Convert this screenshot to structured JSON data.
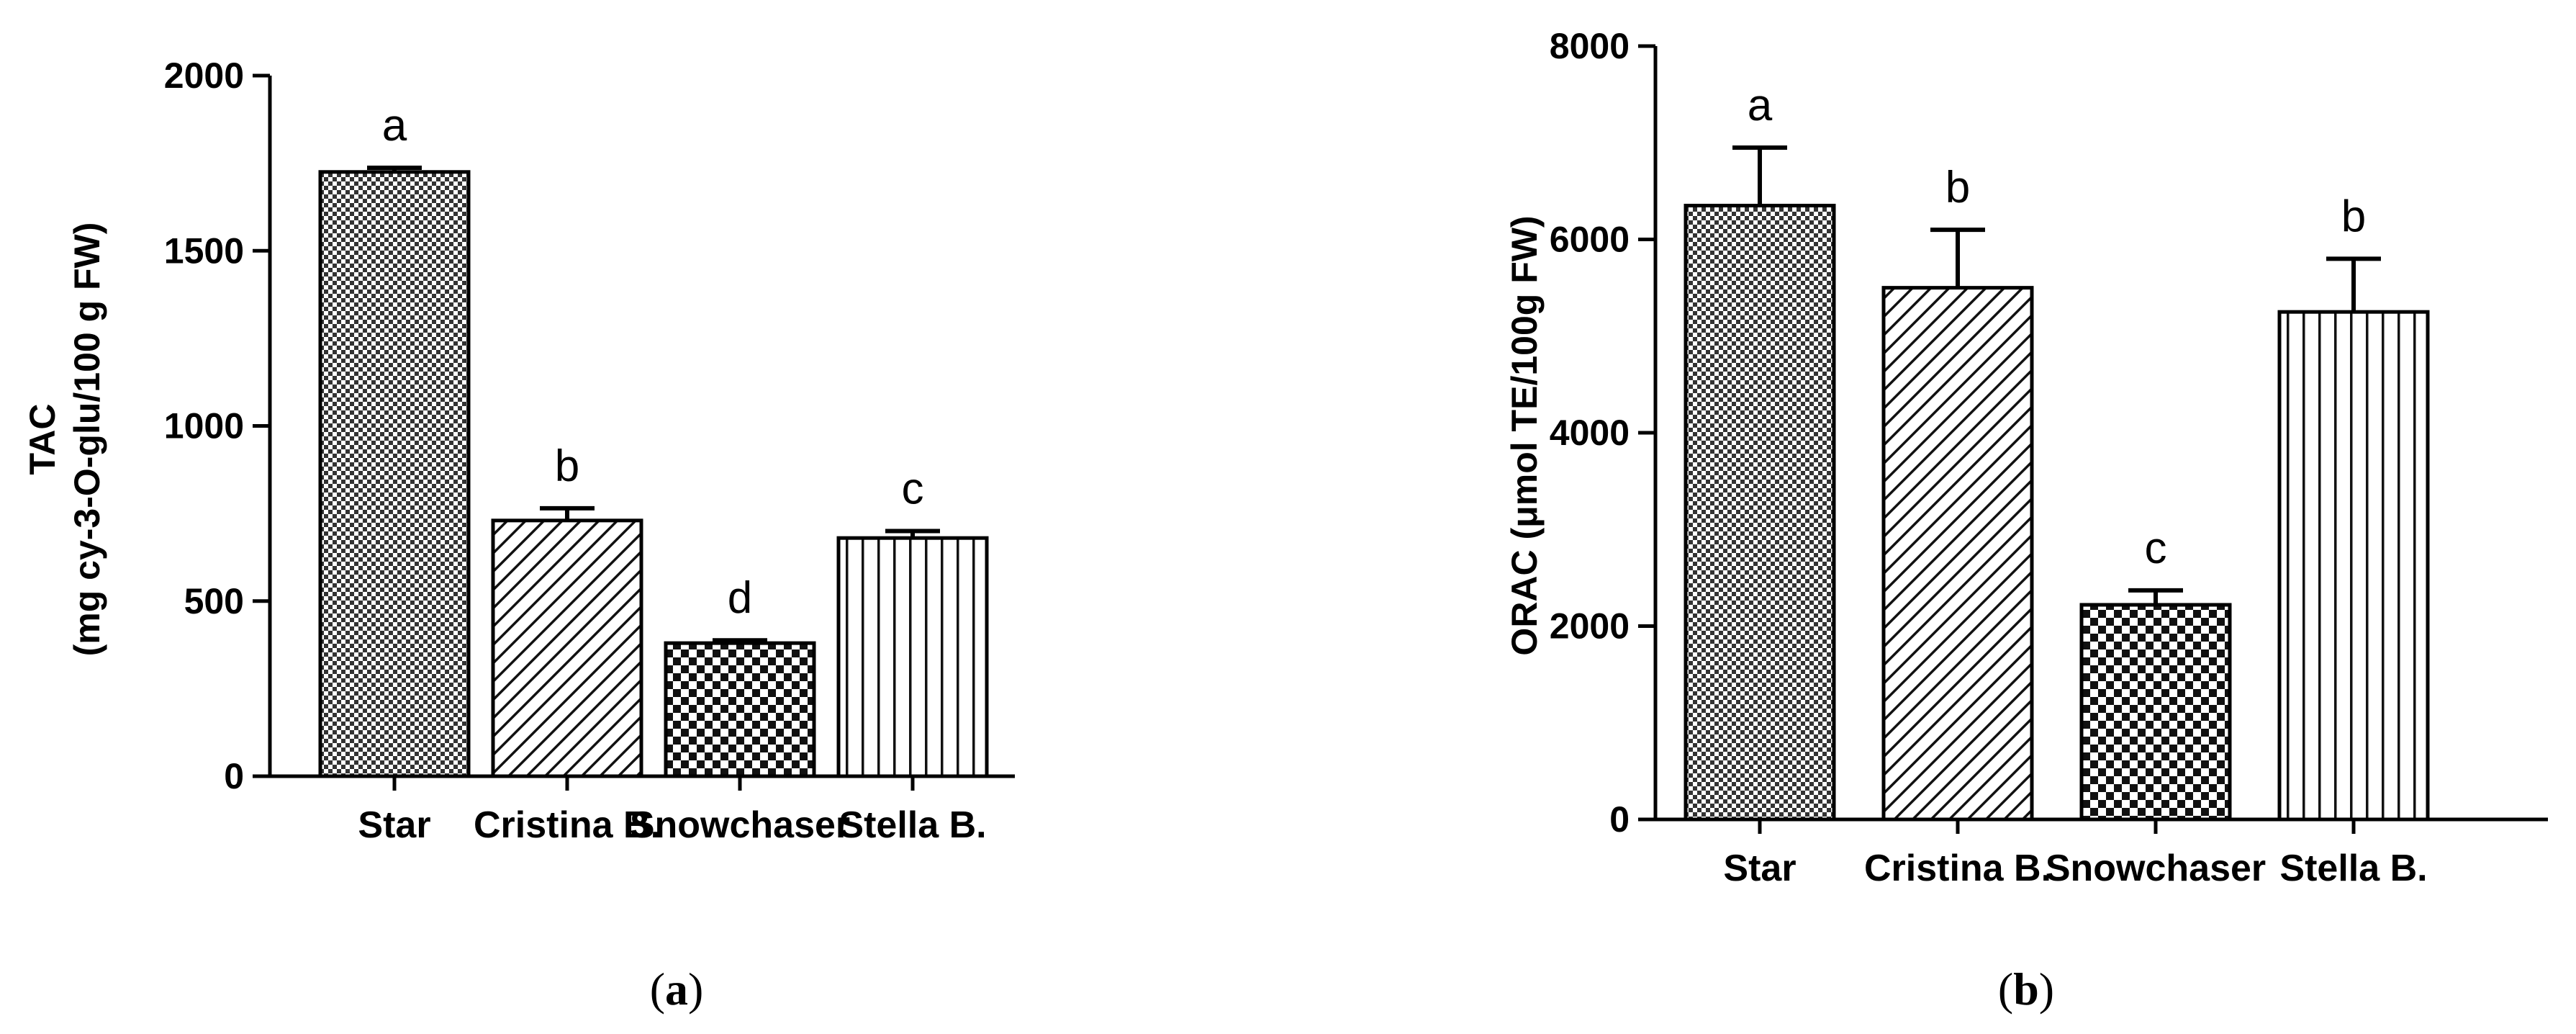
{
  "chart_data": [
    {
      "panel_label": "a",
      "type": "bar",
      "categories": [
        "Star",
        "Cristina B.",
        "Snowchaser",
        "Stella B."
      ],
      "values": [
        1725,
        730,
        380,
        680
      ],
      "errors": [
        12,
        35,
        8,
        20
      ],
      "significance": [
        "a",
        "b",
        "d",
        "c"
      ],
      "patterns": [
        "fine-check",
        "diagonal",
        "coarse-check",
        "vertical"
      ],
      "title": "",
      "xlabel": "",
      "ylabel_lines": [
        "TAC",
        "(mg cy-3-O-glu/100 g FW)"
      ],
      "ylim": [
        0,
        2000
      ],
      "yticks": [
        0,
        500,
        1000,
        1500,
        2000
      ],
      "grid": false,
      "legend": "none"
    },
    {
      "panel_label": "b",
      "type": "bar",
      "categories": [
        "Star",
        "Cristina B.",
        "Snowchaser",
        "Stella B."
      ],
      "values": [
        6350,
        5500,
        2220,
        5250
      ],
      "errors": [
        600,
        600,
        150,
        550
      ],
      "significance": [
        "a",
        "b",
        "c",
        "b"
      ],
      "patterns": [
        "fine-check",
        "diagonal",
        "coarse-check",
        "vertical"
      ],
      "title": "",
      "xlabel": "",
      "ylabel_lines": [
        "ORAC (μmol TE/100g FW)"
      ],
      "ylim": [
        0,
        8000
      ],
      "yticks": [
        0,
        2000,
        4000,
        6000,
        8000
      ],
      "grid": false,
      "legend": "none"
    }
  ]
}
